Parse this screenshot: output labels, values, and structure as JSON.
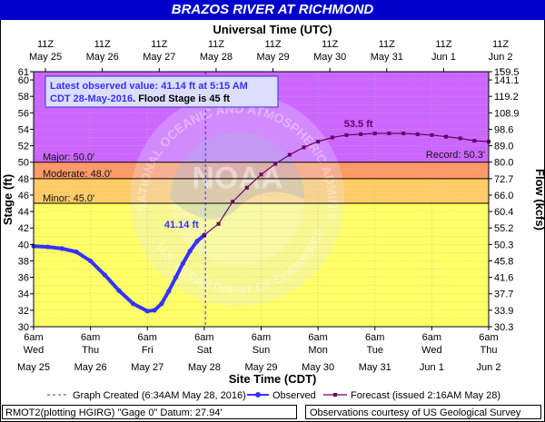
{
  "title": "BRAZOS RIVER AT RICHMOND",
  "chart_data": {
    "type": "line",
    "top_axis_label": "Universal Time (UTC)",
    "bottom_axis_label": "Site Time (CDT)",
    "left_axis_label": "Stage (ft)",
    "right_axis_label": "Flow (kcfs)",
    "ylim": [
      30,
      61
    ],
    "xlim_hours_from_may25_6am": [
      0,
      192
    ],
    "utc_ticks": [
      [
        "11Z",
        "May 25"
      ],
      [
        "11Z",
        "May 26"
      ],
      [
        "11Z",
        "May 27"
      ],
      [
        "11Z",
        "May 28"
      ],
      [
        "11Z",
        "May 29"
      ],
      [
        "11Z",
        "May 30"
      ],
      [
        "11Z",
        "May 31"
      ],
      [
        "11Z",
        "Jun 1"
      ],
      [
        "11Z",
        "Jun 2"
      ]
    ],
    "local_ticks": [
      [
        "6am",
        "Wed",
        "May 25"
      ],
      [
        "6am",
        "Thu",
        "May 26"
      ],
      [
        "6am",
        "Fri",
        "May 27"
      ],
      [
        "6am",
        "Sat",
        "May 28"
      ],
      [
        "6am",
        "Sun",
        "May 29"
      ],
      [
        "6am",
        "Mon",
        "May 30"
      ],
      [
        "6am",
        "Tue",
        "May 31"
      ],
      [
        "6am",
        "Wed",
        "Jun 1"
      ],
      [
        "6am",
        "Thu",
        "Jun 2"
      ]
    ],
    "stage_ticks": [
      30,
      32,
      34,
      36,
      38,
      40,
      42,
      44,
      46,
      48,
      50,
      52,
      54,
      56,
      58,
      60,
      61
    ],
    "flow_ticks": [
      {
        "stage": 30,
        "label": "30.3"
      },
      {
        "stage": 32,
        "label": "33.9"
      },
      {
        "stage": 34,
        "label": "37.7"
      },
      {
        "stage": 36,
        "label": "41.6"
      },
      {
        "stage": 38,
        "label": "45.8"
      },
      {
        "stage": 40,
        "label": "50.3"
      },
      {
        "stage": 42,
        "label": "55.2"
      },
      {
        "stage": 44,
        "label": "60.4"
      },
      {
        "stage": 46,
        "label": "66.0"
      },
      {
        "stage": 48,
        "label": "72.7"
      },
      {
        "stage": 50,
        "label": "80.0"
      },
      {
        "stage": 52,
        "label": "89.0"
      },
      {
        "stage": 54,
        "label": "98.6"
      },
      {
        "stage": 56,
        "label": "108.9"
      },
      {
        "stage": 58,
        "label": "119.2"
      },
      {
        "stage": 60,
        "label": "141.1"
      },
      {
        "stage": 61,
        "label": "159.5"
      }
    ],
    "flood_categories": [
      {
        "name": "Major",
        "label": "Major: 50.0'",
        "from": 50,
        "to": 61,
        "color": "#cc66ff"
      },
      {
        "name": "Moderate",
        "label": "Moderate: 48.0'",
        "from": 48,
        "to": 50,
        "color": "#ff9966"
      },
      {
        "name": "Minor",
        "label": "Minor: 45.0'",
        "from": 45,
        "to": 48,
        "color": "#ffcc66"
      },
      {
        "name": "Action",
        "label": "",
        "from": 30,
        "to": 45,
        "color": "#ffff66"
      }
    ],
    "record_label": "Record: 50.3'",
    "record_stage": 50.3,
    "observed": {
      "name": "Observed",
      "color": "#3333ff",
      "x_hours": [
        0,
        6,
        12,
        18,
        24,
        30,
        36,
        42,
        48,
        51,
        54,
        57,
        60,
        63,
        66,
        69,
        72
      ],
      "stage": [
        39.8,
        39.7,
        39.5,
        39.1,
        38.0,
        36.3,
        34.4,
        32.8,
        31.9,
        32.0,
        32.8,
        34.3,
        36.0,
        37.7,
        39.2,
        40.4,
        41.14
      ]
    },
    "forecast": {
      "name": "Forecast (issued 2:16AM May 28)",
      "color": "#660066",
      "x_hours": [
        72,
        78,
        84,
        90,
        96,
        102,
        108,
        114,
        120,
        126,
        132,
        138,
        144,
        150,
        156,
        162,
        168,
        174,
        180,
        186,
        192
      ],
      "stage": [
        41.14,
        42.5,
        45.2,
        46.9,
        48.5,
        49.8,
        50.9,
        51.8,
        52.5,
        53.0,
        53.3,
        53.4,
        53.5,
        53.5,
        53.5,
        53.4,
        53.3,
        53.1,
        52.9,
        52.6,
        52.5
      ]
    },
    "graph_created_hour": 72.5,
    "observed_label": "41.14 ft",
    "crest_label": "53.5 ft",
    "info_line1": "Latest observed value: 41.14 ft at 5:15 AM",
    "info_line2a": "CDT 28-May-2016",
    "info_line2b": ". Flood Stage is 45 ft",
    "watermark_top": "NATIONAL OCEANIC AND ATMOSPHERIC ADMINISTRATION",
    "watermark_bottom": "U.S. DEPARTMENT OF COMMERCE",
    "watermark_center": "NOAA"
  },
  "legend": {
    "graph_created": "Graph Created (6:34AM May 28, 2016)",
    "observed": "Observed",
    "forecast": "Forecast (issued 2:16AM May 28)"
  },
  "footer": {
    "left": "RMOT2(plotting HGIRG) \"Gage 0\" Datum: 27.94'",
    "right": "Observations courtesy of US Geological Survey"
  }
}
